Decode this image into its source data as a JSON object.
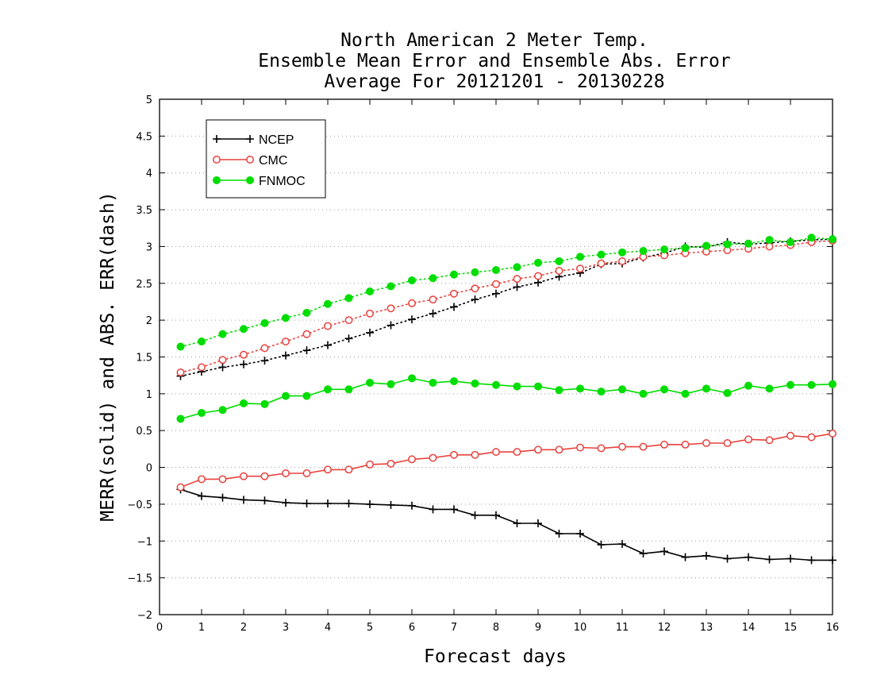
{
  "chart_data": {
    "type": "line",
    "title": [
      "North American 2 Meter Temp.",
      "Ensemble Mean Error and Ensemble Abs. Error",
      "Average For 20121201 - 20130228"
    ],
    "xlabel": "Forecast days",
    "ylabel": "MERR(solid) and ABS. ERR(dash)",
    "xlim": [
      0,
      16
    ],
    "ylim": [
      -2,
      5
    ],
    "xticks": [
      "0",
      "1",
      "2",
      "3",
      "4",
      "5",
      "6",
      "7",
      "8",
      "9",
      "10",
      "11",
      "12",
      "13",
      "14",
      "15",
      "16"
    ],
    "yticks": [
      "-2",
      "-1.5",
      "-1",
      "-0.5",
      "0",
      "0.5",
      "1",
      "1.5",
      "2",
      "2.5",
      "3",
      "3.5",
      "4",
      "4.5",
      "5"
    ],
    "grid": "horizontal dotted",
    "legend_position": "top-left",
    "x": [
      0.5,
      1,
      1.5,
      2,
      2.5,
      3,
      3.5,
      4,
      4.5,
      5,
      5.5,
      6,
      6.5,
      7,
      7.5,
      8,
      8.5,
      9,
      9.5,
      10,
      10.5,
      11,
      11.5,
      12,
      12.5,
      13,
      13.5,
      14,
      14.5,
      15,
      15.5,
      16
    ],
    "series": [
      {
        "name": "NCEP",
        "color": "#000000",
        "marker": "plus",
        "merr": [
          -0.3,
          -0.39,
          -0.41,
          -0.44,
          -0.45,
          -0.48,
          -0.49,
          -0.49,
          -0.49,
          -0.5,
          -0.51,
          -0.52,
          -0.57,
          -0.57,
          -0.65,
          -0.65,
          -0.76,
          -0.76,
          -0.9,
          -0.9,
          -1.05,
          -1.04,
          -1.17,
          -1.14,
          -1.22,
          -1.2,
          -1.24,
          -1.22,
          -1.25,
          -1.24,
          -1.26,
          -1.26
        ],
        "abs_err": [
          1.24,
          1.3,
          1.36,
          1.4,
          1.45,
          1.52,
          1.59,
          1.66,
          1.75,
          1.83,
          1.93,
          2.01,
          2.09,
          2.18,
          2.28,
          2.36,
          2.45,
          2.51,
          2.59,
          2.64,
          2.76,
          2.77,
          2.85,
          2.91,
          3.0,
          2.99,
          3.06,
          3.03,
          3.05,
          3.07,
          3.09,
          3.1
        ]
      },
      {
        "name": "CMC",
        "color": "#e8413c",
        "marker": "open-circle",
        "merr": [
          -0.27,
          -0.16,
          -0.16,
          -0.12,
          -0.12,
          -0.08,
          -0.08,
          -0.03,
          -0.03,
          0.04,
          0.05,
          0.11,
          0.13,
          0.17,
          0.17,
          0.21,
          0.21,
          0.24,
          0.24,
          0.27,
          0.26,
          0.28,
          0.28,
          0.31,
          0.31,
          0.33,
          0.33,
          0.38,
          0.37,
          0.43,
          0.41,
          0.46
        ],
        "abs_err": [
          1.29,
          1.36,
          1.46,
          1.53,
          1.62,
          1.71,
          1.81,
          1.92,
          2.0,
          2.09,
          2.16,
          2.23,
          2.28,
          2.36,
          2.43,
          2.49,
          2.56,
          2.6,
          2.67,
          2.7,
          2.77,
          2.8,
          2.86,
          2.88,
          2.91,
          2.93,
          2.95,
          2.97,
          3.0,
          3.02,
          3.06,
          3.08
        ]
      },
      {
        "name": "FNMOC",
        "color": "#00dd00",
        "marker": "filled-circle",
        "merr": [
          0.66,
          0.74,
          0.78,
          0.87,
          0.86,
          0.97,
          0.97,
          1.06,
          1.06,
          1.15,
          1.13,
          1.21,
          1.15,
          1.17,
          1.14,
          1.12,
          1.1,
          1.1,
          1.05,
          1.07,
          1.03,
          1.06,
          1.0,
          1.06,
          1.0,
          1.07,
          1.01,
          1.11,
          1.07,
          1.12,
          1.12,
          1.13
        ],
        "abs_err": [
          1.64,
          1.71,
          1.81,
          1.88,
          1.96,
          2.03,
          2.1,
          2.22,
          2.3,
          2.39,
          2.46,
          2.54,
          2.57,
          2.62,
          2.65,
          2.68,
          2.72,
          2.78,
          2.8,
          2.86,
          2.89,
          2.92,
          2.94,
          2.96,
          2.98,
          3.01,
          3.03,
          3.04,
          3.09,
          3.06,
          3.12,
          3.1
        ]
      }
    ]
  }
}
